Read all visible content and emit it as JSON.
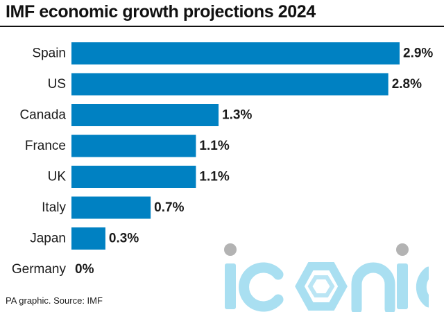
{
  "title": "IMF economic growth projections 2024",
  "source": "PA graphic. Source: IMF",
  "watermark": {
    "text": "iconic",
    "color": "#a9dff1",
    "dot_color": "#b3b3b3"
  },
  "colors": {
    "bar": "#0081c2",
    "text": "#1a1a1a"
  },
  "chart_data": {
    "type": "bar",
    "orientation": "horizontal",
    "title": "IMF economic growth projections 2024",
    "categories": [
      "Spain",
      "US",
      "Canada",
      "France",
      "UK",
      "Italy",
      "Japan",
      "Germany"
    ],
    "values": [
      2.9,
      2.8,
      1.3,
      1.1,
      1.1,
      0.7,
      0.3,
      0
    ],
    "value_labels": [
      "2.9%",
      "2.8%",
      "1.3%",
      "1.1%",
      "1.1%",
      "0.7%",
      "0.3%",
      "0%"
    ],
    "unit": "%",
    "xlim": [
      0,
      2.9
    ],
    "grid": false,
    "legend": "none"
  }
}
